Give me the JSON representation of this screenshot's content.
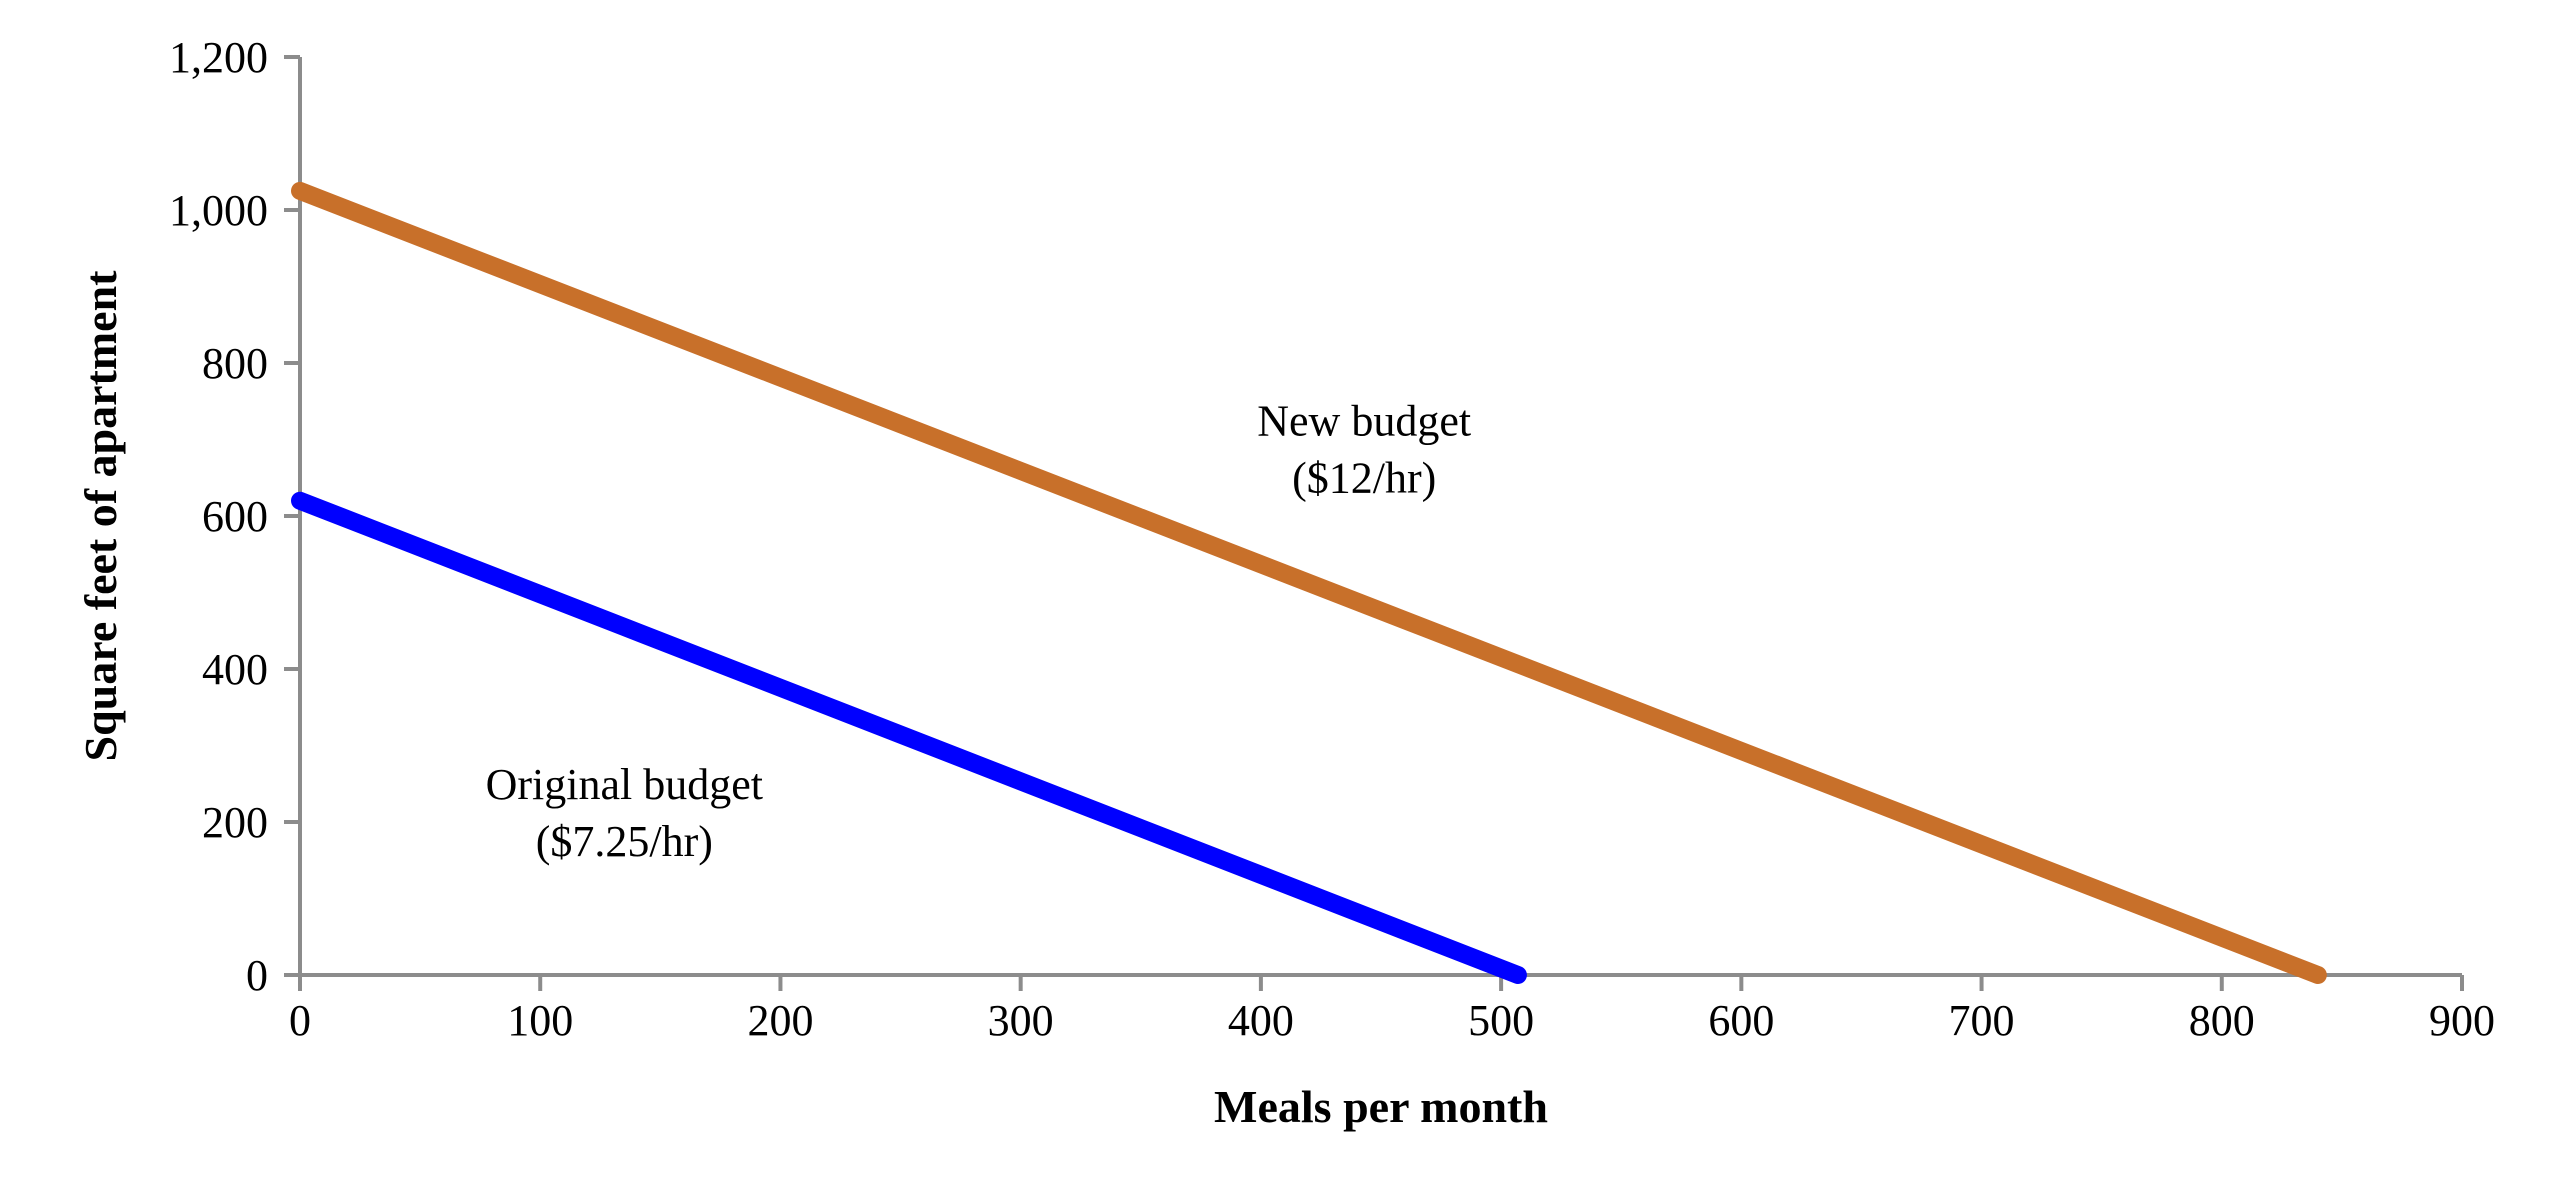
{
  "chart_data": {
    "type": "line",
    "title": "",
    "xlabel": "Meals per month",
    "ylabel": "Square feet of apartment",
    "xlim": [
      0,
      900
    ],
    "ylim": [
      0,
      1200
    ],
    "x_ticks": [
      0,
      100,
      200,
      300,
      400,
      500,
      600,
      700,
      800,
      900
    ],
    "x_tick_labels": [
      "0",
      "100",
      "200",
      "300",
      "400",
      "500",
      "600",
      "700",
      "800",
      "900"
    ],
    "y_ticks": [
      0,
      200,
      400,
      600,
      800,
      1000,
      1200
    ],
    "y_tick_labels": [
      "0",
      "200",
      "400",
      "600",
      "800",
      "1,000",
      "1,200"
    ],
    "grid": false,
    "legend": "none",
    "series": [
      {
        "color": "#0000FF",
        "points": [
          [
            0,
            620
          ],
          [
            507,
            0
          ]
        ],
        "annotation": [
          "Original budget",
          "($7.25/hr)"
        ],
        "annotation_at": [
          135,
          230
        ]
      },
      {
        "color": "#C8702A",
        "points": [
          [
            0,
            1025
          ],
          [
            840,
            0
          ]
        ],
        "annotation": [
          "New budget",
          "($12/hr)"
        ],
        "annotation_at": [
          443,
          705
        ]
      }
    ]
  }
}
